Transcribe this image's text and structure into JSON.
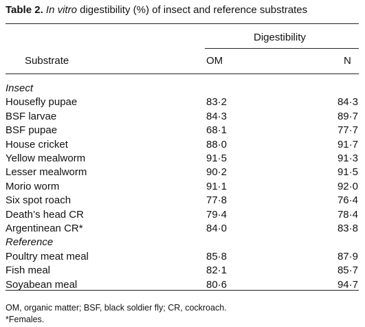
{
  "table": {
    "label": "Table 2.",
    "title_italic": "In vitro",
    "title_rest": " digestibility (%) of insect and reference substrates",
    "group_header": "Digestibility",
    "col_substrate": "Substrate",
    "col_om": "OM",
    "col_n": "N",
    "sections": [
      {
        "name": "Insect",
        "rows": [
          {
            "substrate": "Housefly pupae",
            "om": "83·2",
            "n": "84·3"
          },
          {
            "substrate": "BSF larvae",
            "om": "84·3",
            "n": "89·7"
          },
          {
            "substrate": "BSF pupae",
            "om": "68·1",
            "n": "77·7"
          },
          {
            "substrate": "House cricket",
            "om": "88·0",
            "n": "91·7"
          },
          {
            "substrate": "Yellow mealworm",
            "om": "91·5",
            "n": "91·3"
          },
          {
            "substrate": "Lesser mealworm",
            "om": "90·2",
            "n": "91·5"
          },
          {
            "substrate": "Morio worm",
            "om": "91·1",
            "n": "92·0"
          },
          {
            "substrate": "Six spot roach",
            "om": "77·8",
            "n": "76·4"
          },
          {
            "substrate": "Death’s head CR",
            "om": "79·4",
            "n": "78·4"
          },
          {
            "substrate": "Argentinean CR*",
            "om": "84·0",
            "n": "83·8"
          }
        ]
      },
      {
        "name": "Reference",
        "rows": [
          {
            "substrate": "Poultry meat meal",
            "om": "85·8",
            "n": "87·9"
          },
          {
            "substrate": "Fish meal",
            "om": "82·1",
            "n": "85·7"
          },
          {
            "substrate": "Soyabean meal",
            "om": "80·6",
            "n": "94·7"
          }
        ]
      }
    ],
    "footnotes": [
      "OM, organic matter; BSF, black soldier fly; CR, cockroach.",
      "*Females."
    ]
  }
}
